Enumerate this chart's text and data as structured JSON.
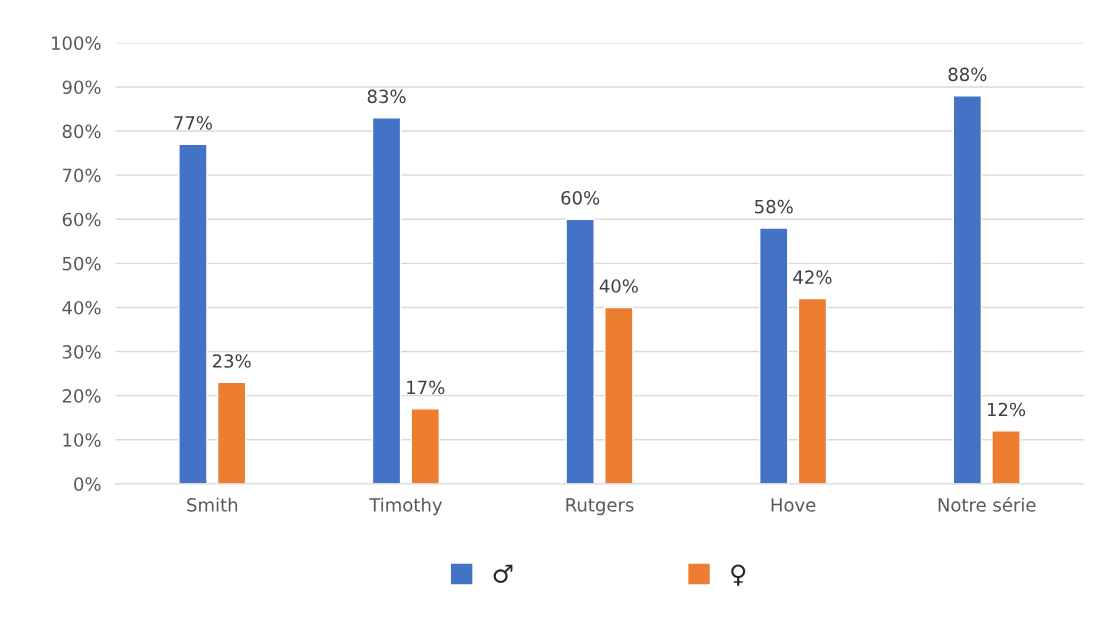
{
  "chart_data": {
    "type": "bar",
    "categories": [
      "Smith",
      "Timothy",
      "Rutgers",
      "Hove",
      "Notre série"
    ],
    "series": [
      {
        "name": "♂",
        "color": "#4472c4",
        "values": [
          77,
          83,
          60,
          58,
          88
        ],
        "value_labels": [
          "77%",
          "83%",
          "60%",
          "58%",
          "88%"
        ]
      },
      {
        "name": "♀",
        "color": "#ed7d31",
        "values": [
          23,
          17,
          40,
          42,
          12
        ],
        "value_labels": [
          "23%",
          "17%",
          "40%",
          "42%",
          "12%"
        ]
      }
    ],
    "ylim": [
      0,
      100
    ],
    "yticks": [
      {
        "value": 0,
        "label": "0%"
      },
      {
        "value": 10,
        "label": "10%"
      },
      {
        "value": 20,
        "label": "20%"
      },
      {
        "value": 30,
        "label": "30%"
      },
      {
        "value": 40,
        "label": "40%"
      },
      {
        "value": 50,
        "label": "50%"
      },
      {
        "value": 60,
        "label": "60%"
      },
      {
        "value": 70,
        "label": "70%"
      },
      {
        "value": 80,
        "label": "80%"
      },
      {
        "value": 90,
        "label": "90%"
      },
      {
        "value": 100,
        "label": "100%"
      }
    ],
    "grid": "y",
    "legend": "bottom"
  }
}
